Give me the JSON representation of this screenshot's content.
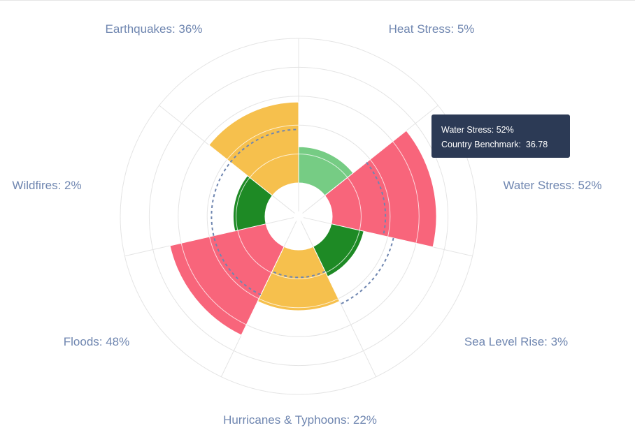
{
  "chart_data": {
    "type": "polar-bar",
    "radial_max": 100,
    "grid_rings": [
      20,
      40,
      60,
      80,
      100
    ],
    "categories": [
      {
        "name": "Heat Stress",
        "label": "Heat Stress: 5%",
        "value": 5,
        "fill_to": 25,
        "benchmark": null,
        "color": "#76cc84"
      },
      {
        "name": "Water Stress",
        "label": "Water Stress: 52%",
        "value": 52,
        "fill_to": 72,
        "benchmark": 36.78,
        "color": "#f8657b"
      },
      {
        "name": "Sea Level Rise",
        "label": "Sea Level Rise: 3%",
        "value": 3,
        "fill_to": 23,
        "benchmark": 44,
        "color": "#1e8a25"
      },
      {
        "name": "Hurricanes & Typhoons",
        "label": "Hurricanes & Typhoons: 22%",
        "value": 22,
        "fill_to": 42,
        "benchmark": 19,
        "color": "#f6c04d"
      },
      {
        "name": "Floods",
        "label": "Floods: 48%",
        "value": 48,
        "fill_to": 68,
        "benchmark": 37,
        "color": "#f8657b"
      },
      {
        "name": "Wildfires",
        "label": "Wildfires: 2%",
        "value": 2,
        "fill_to": 22,
        "benchmark": 37,
        "color": "#1e8a25"
      },
      {
        "name": "Earthquakes",
        "label": "Earthquakes: 36%",
        "value": 36,
        "fill_to": 56,
        "benchmark": 37,
        "color": "#f6c04d"
      }
    ]
  },
  "tooltip": {
    "line1": "Water Stress: 52%",
    "line2_label": "Country Benchmark:",
    "line2_value": "36.78"
  },
  "colors": {
    "grid": "#e4e4e4",
    "label": "#6f86b0",
    "benchmark": "#6f86b0",
    "tooltip_bg": "#2c3a55"
  }
}
